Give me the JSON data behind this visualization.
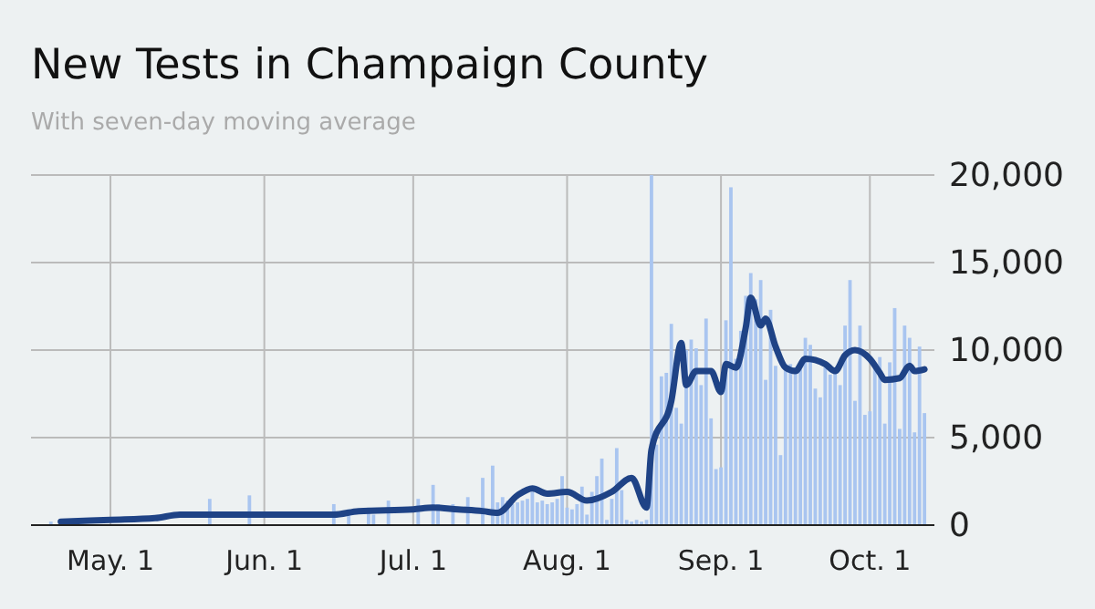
{
  "chart_data": {
    "type": "bar",
    "title": "New Tests in Champaign County",
    "subtitle": "With seven-day moving average",
    "xlim": [
      "--04-15",
      "--10-14"
    ],
    "xticks": [
      {
        "value": "--05-01",
        "label": "May. 1"
      },
      {
        "value": "--06-01",
        "label": "Jun. 1"
      },
      {
        "value": "--07-01",
        "label": "Jul. 1"
      },
      {
        "value": "--08-01",
        "label": "Aug. 1"
      },
      {
        "value": "--09-01",
        "label": "Sep. 1"
      },
      {
        "value": "--10-01",
        "label": "Oct. 1"
      }
    ],
    "ylim": [
      0,
      20000
    ],
    "yticks": [
      {
        "value": 0,
        "label": "0"
      },
      {
        "value": 5000,
        "label": "5,000"
      },
      {
        "value": 10000,
        "label": "10,000"
      },
      {
        "value": 15000,
        "label": "15,000"
      },
      {
        "value": 20000,
        "label": "20,000"
      }
    ],
    "grid": true,
    "series": [
      {
        "color": "#a9c5f0",
        "x": [
          "--04-19",
          "--04-20",
          "--04-21",
          "--04-22",
          "--04-23",
          "--04-24",
          "--04-25",
          "--04-26",
          "--04-27",
          "--04-28",
          "--04-29",
          "--04-30",
          "--05-01",
          "--05-02",
          "--05-03",
          "--05-04",
          "--05-05",
          "--05-06",
          "--05-07",
          "--05-08",
          "--05-09",
          "--05-10",
          "--05-11",
          "--05-12",
          "--05-13",
          "--05-14",
          "--05-15",
          "--05-16",
          "--05-17",
          "--05-18",
          "--05-19",
          "--05-20",
          "--05-21",
          "--05-22",
          "--05-23",
          "--05-24",
          "--05-25",
          "--05-26",
          "--05-27",
          "--05-28",
          "--05-29",
          "--05-30",
          "--05-31",
          "--06-01",
          "--06-02",
          "--06-03",
          "--06-04",
          "--06-05",
          "--06-06",
          "--06-07",
          "--06-08",
          "--06-09",
          "--06-10",
          "--06-11",
          "--06-12",
          "--06-13",
          "--06-14",
          "--06-15",
          "--06-16",
          "--06-17",
          "--06-18",
          "--06-19",
          "--06-20",
          "--06-21",
          "--06-22",
          "--06-23",
          "--06-24",
          "--06-25",
          "--06-26",
          "--06-27",
          "--06-28",
          "--06-29",
          "--06-30",
          "--07-01",
          "--07-02",
          "--07-03",
          "--07-04",
          "--07-05",
          "--07-06",
          "--07-07",
          "--07-08",
          "--07-09",
          "--07-10",
          "--07-11",
          "--07-12",
          "--07-13",
          "--07-14",
          "--07-15",
          "--07-16",
          "--07-17",
          "--07-18",
          "--07-19",
          "--07-20",
          "--07-21",
          "--07-22",
          "--07-23",
          "--07-24",
          "--07-25",
          "--07-26",
          "--07-27",
          "--07-28",
          "--07-29",
          "--07-30",
          "--07-31",
          "--08-01",
          "--08-02",
          "--08-03",
          "--08-04",
          "--08-05",
          "--08-06",
          "--08-07",
          "--08-08",
          "--08-09",
          "--08-10",
          "--08-11",
          "--08-12",
          "--08-13",
          "--08-14",
          "--08-15",
          "--08-16",
          "--08-17",
          "--08-18",
          "--08-19",
          "--08-20",
          "--08-21",
          "--08-22",
          "--08-23",
          "--08-24",
          "--08-25",
          "--08-26",
          "--08-27",
          "--08-28",
          "--08-29",
          "--08-30",
          "--08-31",
          "--09-01",
          "--09-02",
          "--09-03",
          "--09-04",
          "--09-05",
          "--09-06",
          "--09-07",
          "--09-08",
          "--09-09",
          "--09-10",
          "--09-11",
          "--09-12",
          "--09-13",
          "--09-14",
          "--09-15",
          "--09-16",
          "--09-17",
          "--09-18",
          "--09-19",
          "--09-20",
          "--09-21",
          "--09-22",
          "--09-23",
          "--09-24",
          "--09-25",
          "--09-26",
          "--09-27",
          "--09-28",
          "--09-29",
          "--09-30",
          "--10-01",
          "--10-02",
          "--10-03",
          "--10-04",
          "--10-05",
          "--10-06",
          "--10-07",
          "--10-08",
          "--10-09",
          "--10-10",
          "--10-11",
          "--10-12"
        ],
        "values": [
          200,
          null,
          null,
          null,
          null,
          null,
          null,
          null,
          null,
          null,
          null,
          null,
          null,
          null,
          null,
          null,
          null,
          null,
          null,
          null,
          null,
          null,
          null,
          null,
          null,
          null,
          null,
          null,
          null,
          null,
          null,
          null,
          1500,
          null,
          null,
          null,
          null,
          null,
          null,
          null,
          1700,
          null,
          null,
          null,
          null,
          null,
          null,
          null,
          null,
          null,
          null,
          null,
          null,
          null,
          null,
          null,
          null,
          1200,
          null,
          null,
          900,
          null,
          null,
          null,
          1000,
          600,
          null,
          null,
          1400,
          null,
          null,
          null,
          null,
          null,
          1500,
          null,
          null,
          2300,
          1200,
          null,
          null,
          1200,
          null,
          null,
          1600,
          null,
          null,
          2700,
          null,
          3400,
          1300,
          1600,
          1400,
          1200,
          1300,
          1400,
          1500,
          1900,
          1300,
          1400,
          1200,
          1300,
          1500,
          2800,
          1000,
          900,
          1200,
          2200,
          600,
          1900,
          2800,
          3800,
          300,
          1500,
          4400,
          2000,
          300,
          200,
          300,
          200,
          300,
          20000,
          4600,
          8500,
          8700,
          11500,
          6700,
          5800,
          10000,
          10600,
          10100,
          8000,
          11800,
          6100,
          3200,
          3300,
          11700,
          19300,
          9500,
          11100,
          13100,
          14400,
          12900,
          14000,
          8300,
          12300,
          9100,
          4000,
          9100,
          9200,
          9000,
          8900,
          10700,
          10300,
          7800,
          7300,
          9000,
          8600,
          8700,
          8000,
          11400,
          14000,
          7100,
          11400,
          6300,
          6500,
          9100,
          9600,
          5800,
          9300,
          12400,
          5500,
          11400,
          10700,
          5300,
          10200,
          6400
        ]
      },
      {
        "type": "line",
        "color": "#1f4386",
        "x": [
          "--04-21",
          "--05-01",
          "--05-10",
          "--05-15",
          "--06-01",
          "--06-15",
          "--06-20",
          "--07-01",
          "--07-05",
          "--07-10",
          "--07-15",
          "--07-18",
          "--07-22",
          "--07-25",
          "--07-28",
          "--08-01",
          "--08-05",
          "--08-10",
          "--08-14",
          "--08-17",
          "--08-18",
          "--08-22",
          "--08-24",
          "--08-25",
          "--08-27",
          "--08-30",
          "--09-01",
          "--09-02",
          "--09-04",
          "--09-06",
          "--09-07",
          "--09-09",
          "--09-10",
          "--09-12",
          "--09-14",
          "--09-16",
          "--09-18",
          "--09-22",
          "--09-24",
          "--09-26",
          "--09-28",
          "--10-01",
          "--10-03",
          "--10-04",
          "--10-07",
          "--10-09",
          "--10-10",
          "--10-12"
        ],
        "values": [
          200,
          300,
          400,
          600,
          600,
          600,
          800,
          900,
          1000,
          900,
          800,
          700,
          1700,
          2100,
          1800,
          1900,
          1400,
          1900,
          2700,
          1000,
          4300,
          7100,
          10400,
          8000,
          8800,
          8800,
          7600,
          9200,
          9000,
          11300,
          13000,
          11400,
          11800,
          10200,
          9000,
          8800,
          9500,
          9200,
          8800,
          9700,
          10000,
          9500,
          8700,
          8300,
          8400,
          9100,
          8800,
          8900
        ]
      }
    ]
  }
}
